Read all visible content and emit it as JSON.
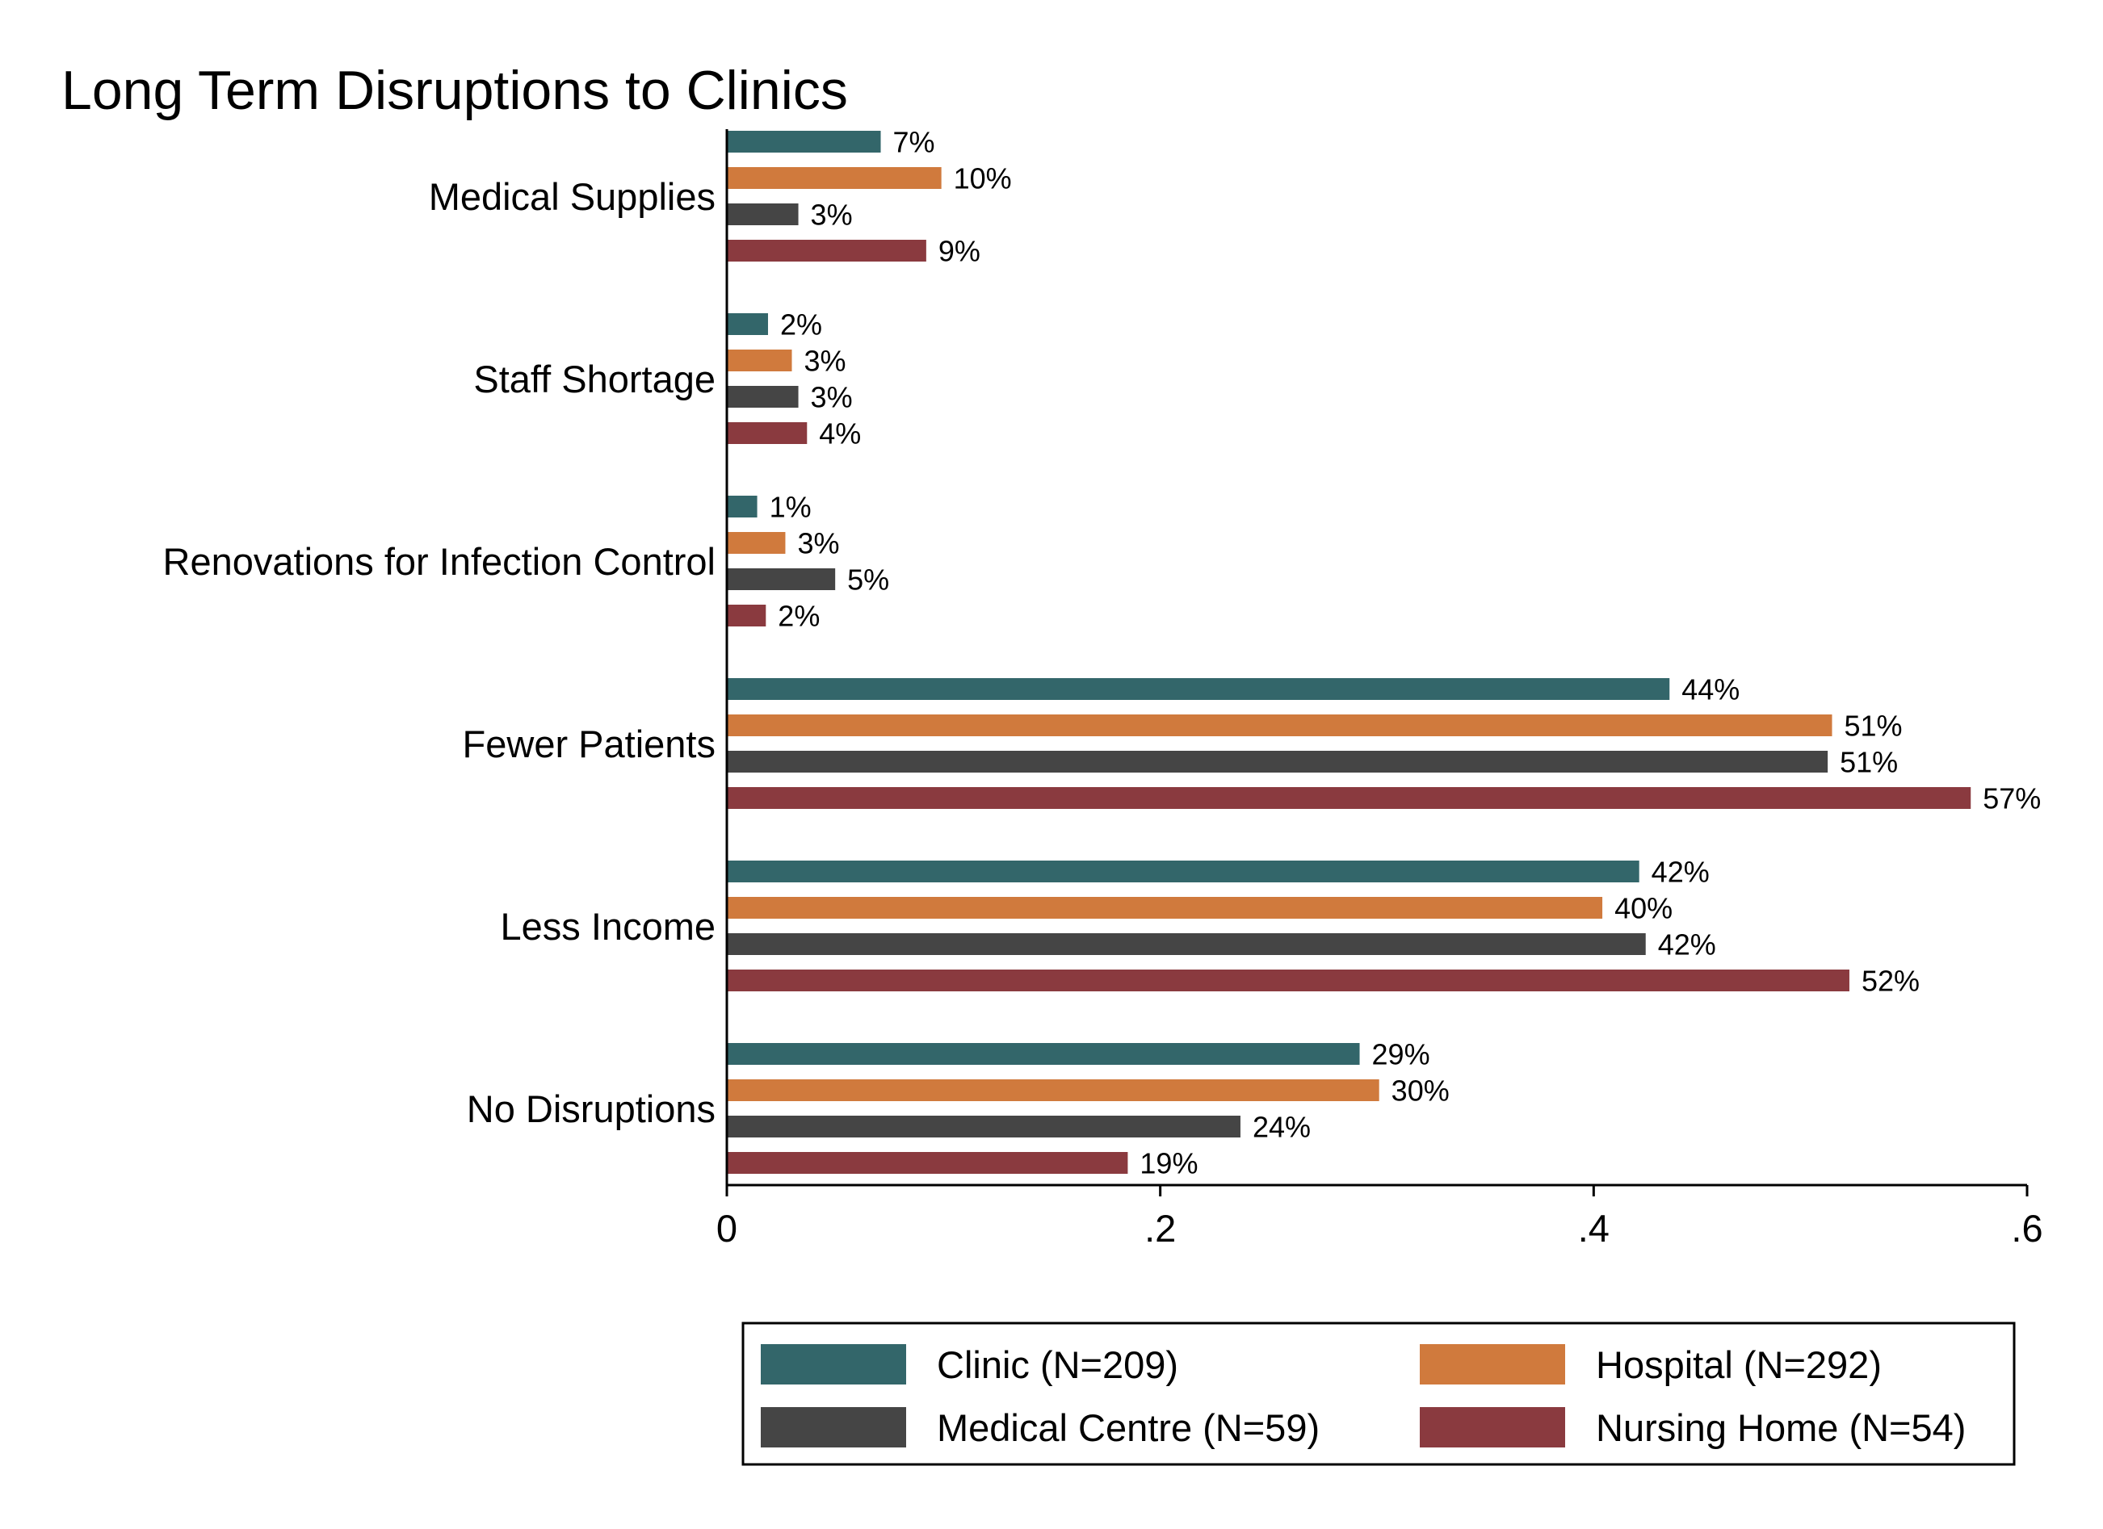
{
  "chart_data": {
    "type": "bar",
    "orientation": "horizontal",
    "title": "Long Term Disruptions to Clinics",
    "xlabel": "",
    "ylabel": "",
    "xlim": [
      0,
      0.6
    ],
    "xticks": [
      {
        "value": 0,
        "label": "0"
      },
      {
        "value": 0.2,
        "label": ".2"
      },
      {
        "value": 0.4,
        "label": ".4"
      },
      {
        "value": 0.6,
        "label": ".6"
      }
    ],
    "grid": false,
    "legend_position": "bottom",
    "categories": [
      "Medical Supplies",
      "Staff Shortage",
      "Renovations for Infection Control",
      "Fewer Patients",
      "Less Income",
      "No Disruptions"
    ],
    "series": [
      {
        "name": "Clinic (N=209)",
        "color": "#33666a",
        "values": [
          0.071,
          0.019,
          0.014,
          0.435,
          0.421,
          0.292
        ],
        "labels": [
          "7%",
          "2%",
          "1%",
          "44%",
          "42%",
          "29%"
        ]
      },
      {
        "name": "Hospital (N=292)",
        "color": "#d07a3d",
        "values": [
          0.099,
          0.03,
          0.027,
          0.51,
          0.404,
          0.301
        ],
        "labels": [
          "10%",
          "3%",
          "3%",
          "51%",
          "40%",
          "30%"
        ]
      },
      {
        "name": "Medical Centre (N=59)",
        "color": "#454545",
        "values": [
          0.033,
          0.033,
          0.05,
          0.508,
          0.424,
          0.237
        ],
        "labels": [
          "3%",
          "3%",
          "5%",
          "51%",
          "42%",
          "24%"
        ]
      },
      {
        "name": "Nursing Home (N=54)",
        "color": "#8a3a3f",
        "values": [
          0.092,
          0.037,
          0.018,
          0.574,
          0.518,
          0.185
        ],
        "labels": [
          "9%",
          "4%",
          "2%",
          "57%",
          "52%",
          "19%"
        ]
      }
    ]
  }
}
